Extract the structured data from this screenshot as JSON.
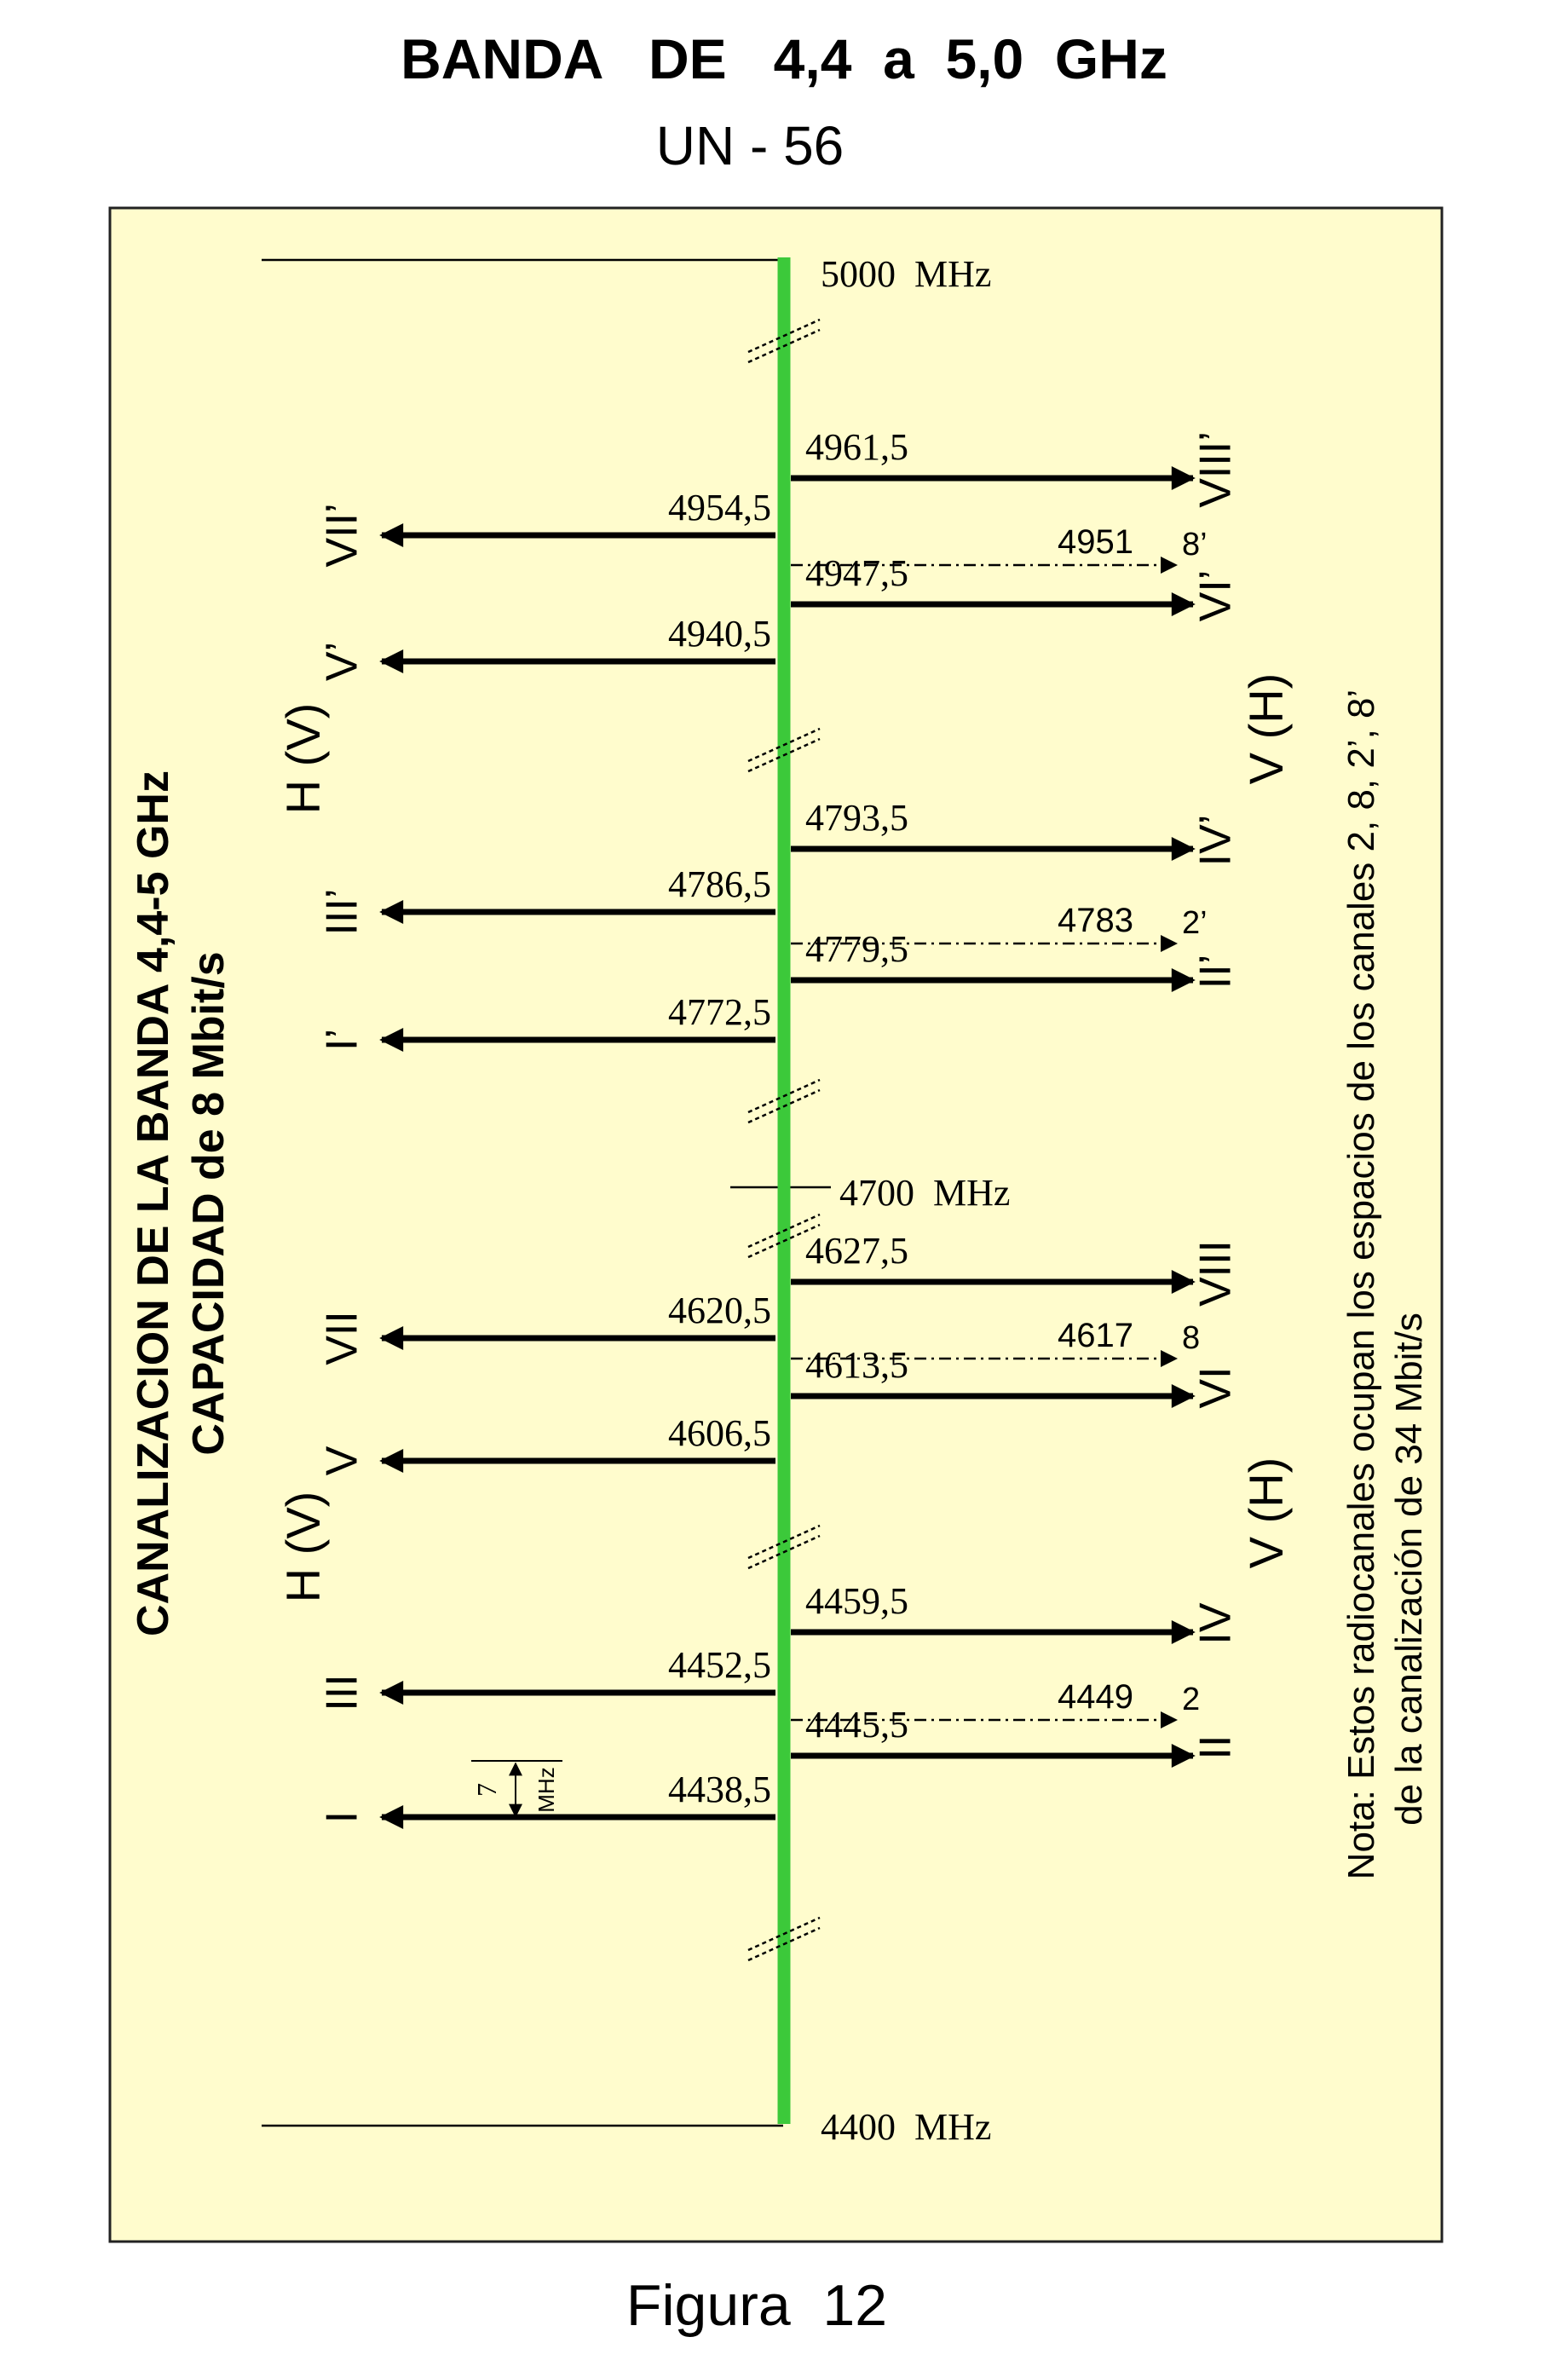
{
  "title": "BANDA   DE   4,4  a  5,0  GHz",
  "subtitle": "UN - 56",
  "caption": "Figura  12",
  "side_title_1": "CANALIZACION DE LA BANDA 4,4-5 GHz",
  "side_title_2": "CAPACIDAD de 8 Mbit/s",
  "note_1": "Nota: Estos radiocanales ocupan los espacios de los canales 2, 8, 2’, 8’",
  "note_2": "de la canalización de 34 Mbit/s",
  "band_top": "5000  MHz",
  "band_mid": "4700  MHz",
  "band_bottom": "4400  MHz",
  "spacing_value": "7",
  "spacing_unit": "MHz",
  "pol_left_upper": "H (V)",
  "pol_left_lower": "H (V)",
  "pol_right_upper": "V (H)",
  "pol_right_lower": "V (H)",
  "colors": {
    "axis": "#3cc93a",
    "background": "#fffccd",
    "border": "#222222"
  },
  "channels_left": [
    {
      "freq": "4954,5",
      "label": "VII’"
    },
    {
      "freq": "4940,5",
      "label": "V’"
    },
    {
      "freq": "4786,5",
      "label": "III’"
    },
    {
      "freq": "4772,5",
      "label": "I’"
    },
    {
      "freq": "4620,5",
      "label": "VII"
    },
    {
      "freq": "4606,5",
      "label": "V"
    },
    {
      "freq": "4452,5",
      "label": "III"
    },
    {
      "freq": "4438,5",
      "label": "I"
    }
  ],
  "channels_right": [
    {
      "freq": "4961,5",
      "label": "VIII’"
    },
    {
      "freq": "4947,5",
      "label": "VI’"
    },
    {
      "freq": "4793,5",
      "label": "IV’"
    },
    {
      "freq": "4779,5",
      "label": "II’"
    },
    {
      "freq": "4627,5",
      "label": "VIII"
    },
    {
      "freq": "4613,5",
      "label": "VI"
    },
    {
      "freq": "4459,5",
      "label": "IV"
    },
    {
      "freq": "4445,5",
      "label": "II"
    }
  ],
  "channels_dashed": [
    {
      "freq": "4951",
      "label": "8’"
    },
    {
      "freq": "4783",
      "label": "2’"
    },
    {
      "freq": "4617",
      "label": "8"
    },
    {
      "freq": "4449",
      "label": "2"
    }
  ]
}
